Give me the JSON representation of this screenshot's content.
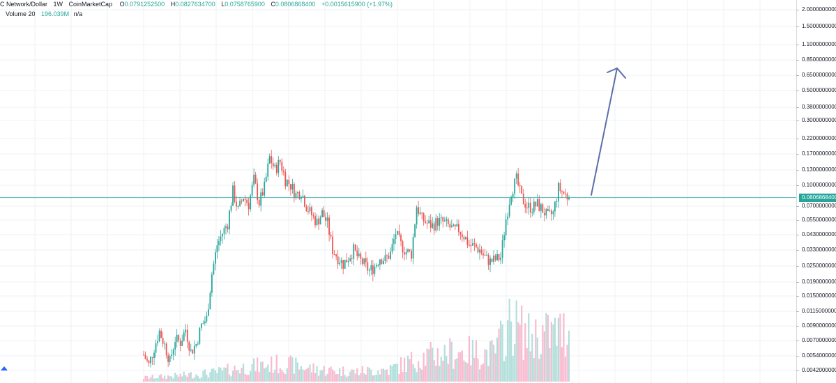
{
  "legend": {
    "symbol": "C Network/Dollar",
    "timeframe": "1W",
    "source": "CoinMarketCap",
    "open_key": "O",
    "open": "0.0791252500",
    "high_key": "H",
    "high": "0.0827634700",
    "low_key": "L",
    "low": "0.0758765900",
    "close_key": "C",
    "close": "0.0806868400",
    "change": "+0.0015615900 (+1.97%)",
    "volume_label": "Volume 20",
    "volume_value": "196.039M",
    "volume_ma": "n/a"
  },
  "price_axis": {
    "ticks": [
      "2.0000000000",
      "1.5000000000",
      "1.1000000000",
      "0.8500000000",
      "0.6500000000",
      "0.5000000000",
      "0.3800000000",
      "0.3000000000",
      "0.2200000000",
      "0.1700000000",
      "0.1300000000",
      "0.1000000000",
      "0.0700000000",
      "0.0550000000",
      "0.0430000000",
      "0.0330000000",
      "0.0250000000",
      "0.0190000000",
      "0.0150000000",
      "0.0115000000",
      "0.0090000000",
      "0.0070000000",
      "0.0054000000",
      "0.0042000000"
    ],
    "current_price": "0.0806868400"
  },
  "chart_data": {
    "type": "candlestick",
    "timeframe": "1W",
    "y_scale": "log",
    "ylim": [
      0.0038,
      2.2
    ],
    "current_price": 0.08068684,
    "price_path": [
      [
        0,
        0.0055
      ],
      [
        3,
        0.0046
      ],
      [
        6,
        0.0062
      ],
      [
        9,
        0.0082
      ],
      [
        12,
        0.0065
      ],
      [
        15,
        0.0049
      ],
      [
        18,
        0.0072
      ],
      [
        21,
        0.0068
      ],
      [
        24,
        0.0085
      ],
      [
        27,
        0.0058
      ],
      [
        30,
        0.0066
      ],
      [
        33,
        0.0091
      ],
      [
        36,
        0.0102
      ],
      [
        39,
        0.022
      ],
      [
        42,
        0.036
      ],
      [
        45,
        0.044
      ],
      [
        48,
        0.052
      ],
      [
        51,
        0.09
      ],
      [
        54,
        0.065
      ],
      [
        57,
        0.082
      ],
      [
        60,
        0.072
      ],
      [
        63,
        0.11
      ],
      [
        66,
        0.074
      ],
      [
        69,
        0.096
      ],
      [
        72,
        0.16
      ],
      [
        75,
        0.13
      ],
      [
        78,
        0.15
      ],
      [
        81,
        0.11
      ],
      [
        84,
        0.1
      ],
      [
        87,
        0.085
      ],
      [
        90,
        0.09
      ],
      [
        93,
        0.07
      ],
      [
        96,
        0.06
      ],
      [
        99,
        0.053
      ],
      [
        102,
        0.062
      ],
      [
        105,
        0.052
      ],
      [
        108,
        0.033
      ],
      [
        111,
        0.029
      ],
      [
        114,
        0.026
      ],
      [
        117,
        0.029
      ],
      [
        120,
        0.033
      ],
      [
        123,
        0.028
      ],
      [
        126,
        0.026
      ],
      [
        129,
        0.023
      ],
      [
        132,
        0.025
      ],
      [
        135,
        0.029
      ],
      [
        138,
        0.028
      ],
      [
        141,
        0.031
      ],
      [
        144,
        0.044
      ],
      [
        147,
        0.036
      ],
      [
        150,
        0.032
      ],
      [
        153,
        0.031
      ],
      [
        156,
        0.07
      ],
      [
        159,
        0.056
      ],
      [
        162,
        0.052
      ],
      [
        165,
        0.05
      ],
      [
        168,
        0.054
      ],
      [
        171,
        0.053
      ],
      [
        174,
        0.05
      ],
      [
        177,
        0.046
      ],
      [
        180,
        0.047
      ],
      [
        183,
        0.042
      ],
      [
        186,
        0.036
      ],
      [
        189,
        0.035
      ],
      [
        192,
        0.033
      ],
      [
        195,
        0.029
      ],
      [
        198,
        0.027
      ],
      [
        201,
        0.028
      ],
      [
        204,
        0.029
      ],
      [
        207,
        0.056
      ],
      [
        210,
        0.09
      ],
      [
        213,
        0.11
      ],
      [
        216,
        0.08
      ],
      [
        219,
        0.07
      ],
      [
        222,
        0.068
      ],
      [
        225,
        0.072
      ],
      [
        228,
        0.065
      ],
      [
        231,
        0.058
      ],
      [
        234,
        0.062
      ],
      [
        237,
        0.095
      ],
      [
        240,
        0.087
      ],
      [
        243,
        0.08
      ]
    ],
    "volume_path": [
      [
        0,
        0.04
      ],
      [
        20,
        0.06
      ],
      [
        40,
        0.09
      ],
      [
        60,
        0.15
      ],
      [
        80,
        0.18
      ],
      [
        100,
        0.12
      ],
      [
        120,
        0.1
      ],
      [
        140,
        0.12
      ],
      [
        160,
        0.25
      ],
      [
        180,
        0.3
      ],
      [
        200,
        0.28
      ],
      [
        210,
        0.6
      ],
      [
        220,
        0.45
      ],
      [
        240,
        0.5
      ]
    ],
    "annotation": "arrow-up"
  },
  "colors": {
    "up": "#26a69a",
    "down": "#ef5350",
    "volume_up": "#b2dfdb",
    "volume_down": "#f8bbd0",
    "grid": "#eef0f3",
    "arrow": "#5b6fa8",
    "price_line": "#26a69a"
  }
}
